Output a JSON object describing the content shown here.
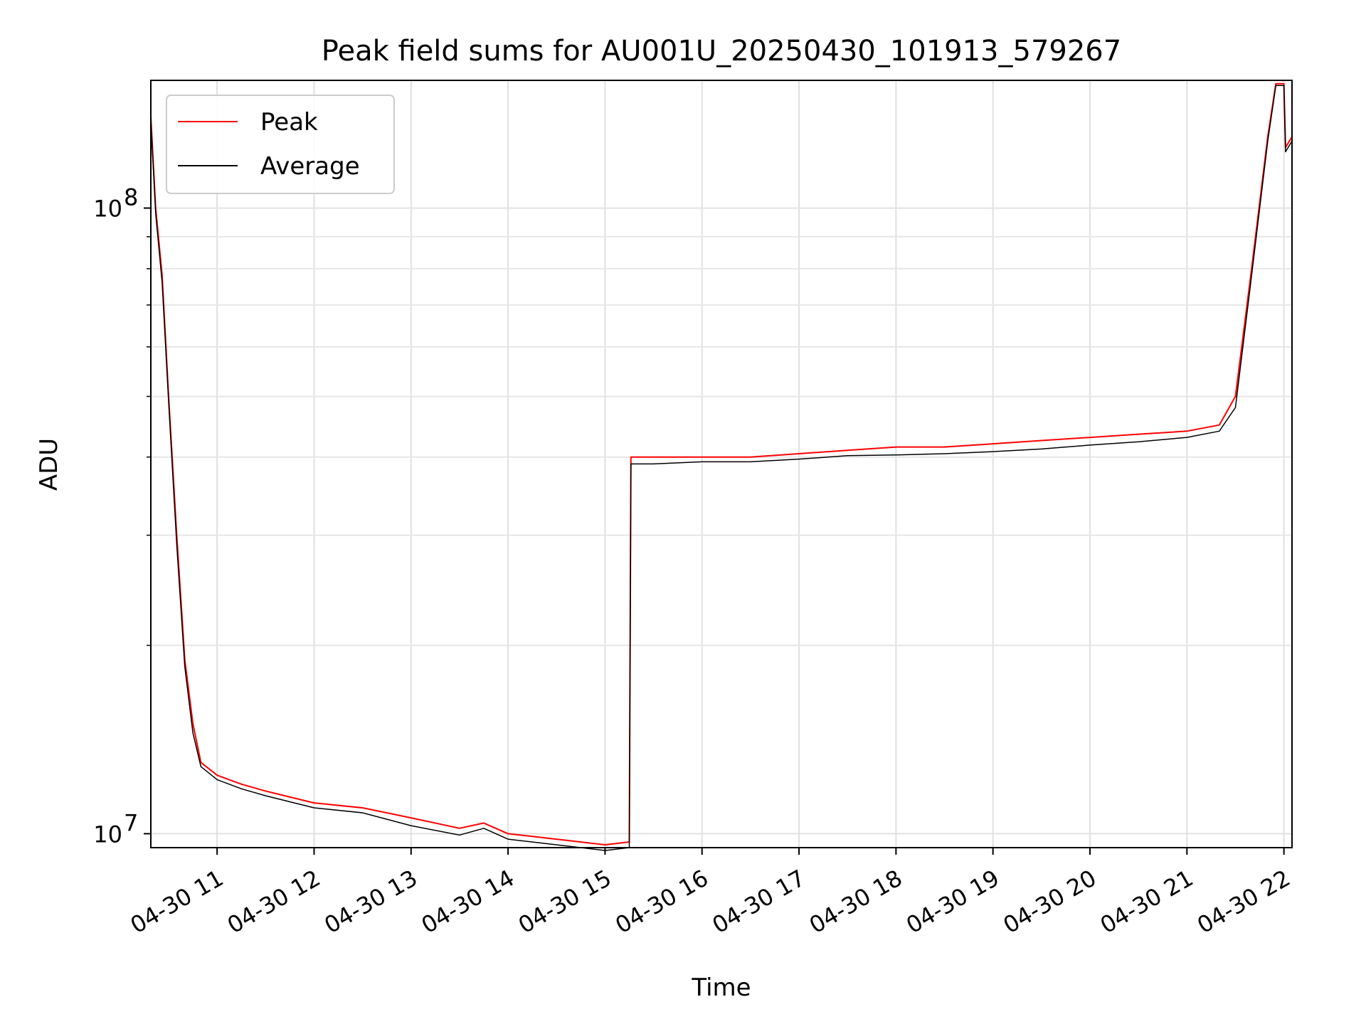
{
  "chart_data": {
    "type": "line",
    "title": "Peak field sums for AU001U_20250430_101913_579267",
    "xlabel": "Time",
    "ylabel": "ADU",
    "y_scale": "log",
    "ylim": [
      9500000,
      160000000
    ],
    "xlim": [
      "04-30 10:19",
      "04-30 22:05"
    ],
    "grid": true,
    "legend_position": "top-left",
    "x_ticks": [
      "04-30 11",
      "04-30 12",
      "04-30 13",
      "04-30 14",
      "04-30 15",
      "04-30 16",
      "04-30 17",
      "04-30 18",
      "04-30 19",
      "04-30 20",
      "04-30 21",
      "04-30 22"
    ],
    "y_tick_labels": [
      {
        "value": 10000000,
        "base": "10",
        "exp": "7"
      },
      {
        "value": 100000000,
        "base": "10",
        "exp": "8"
      }
    ],
    "series": [
      {
        "name": "Peak",
        "color": "#ff0000",
        "x": [
          "04-30 10:19",
          "04-30 10:22",
          "04-30 10:26",
          "04-30 10:30",
          "04-30 10:35",
          "04-30 10:40",
          "04-30 10:45",
          "04-30 10:50",
          "04-30 11:00",
          "04-30 11:15",
          "04-30 11:30",
          "04-30 12:00",
          "04-30 12:30",
          "04-30 13:00",
          "04-30 13:30",
          "04-30 13:45",
          "04-30 14:00",
          "04-30 14:30",
          "04-30 15:00",
          "04-30 15:15",
          "04-30 15:16",
          "04-30 15:30",
          "04-30 16:00",
          "04-30 16:30",
          "04-30 17:00",
          "04-30 17:30",
          "04-30 18:00",
          "04-30 18:30",
          "04-30 19:00",
          "04-30 19:30",
          "04-30 20:00",
          "04-30 20:30",
          "04-30 21:00",
          "04-30 21:20",
          "04-30 21:30",
          "04-30 21:40",
          "04-30 21:50",
          "04-30 21:55",
          "04-30 22:00",
          "04-30 22:01",
          "04-30 22:05"
        ],
        "y": [
          140000000,
          100000000,
          78000000,
          50000000,
          30000000,
          19000000,
          15000000,
          13000000,
          12400000,
          12000000,
          11700000,
          11200000,
          11000000,
          10600000,
          10200000,
          10400000,
          10000000,
          9800000,
          9600000,
          9700000,
          40000000,
          40000000,
          40000000,
          40000000,
          40500000,
          41000000,
          41500000,
          41500000,
          42000000,
          42500000,
          43000000,
          43500000,
          44000000,
          45000000,
          50000000,
          80000000,
          130000000,
          158000000,
          158000000,
          125000000,
          130000000
        ]
      },
      {
        "name": "Average",
        "color": "#000000",
        "x": [
          "04-30 10:19",
          "04-30 10:22",
          "04-30 10:26",
          "04-30 10:30",
          "04-30 10:35",
          "04-30 10:40",
          "04-30 10:45",
          "04-30 10:50",
          "04-30 11:00",
          "04-30 11:15",
          "04-30 11:30",
          "04-30 12:00",
          "04-30 12:30",
          "04-30 13:00",
          "04-30 13:30",
          "04-30 13:45",
          "04-30 14:00",
          "04-30 14:30",
          "04-30 15:00",
          "04-30 15:15",
          "04-30 15:16",
          "04-30 15:30",
          "04-30 16:00",
          "04-30 16:30",
          "04-30 17:00",
          "04-30 17:30",
          "04-30 18:00",
          "04-30 18:30",
          "04-30 19:00",
          "04-30 19:30",
          "04-30 20:00",
          "04-30 20:30",
          "04-30 21:00",
          "04-30 21:20",
          "04-30 21:30",
          "04-30 21:40",
          "04-30 21:50",
          "04-30 21:55",
          "04-30 22:00",
          "04-30 22:01",
          "04-30 22:05"
        ],
        "y": [
          138000000,
          98000000,
          76000000,
          49000000,
          29000000,
          18500000,
          14500000,
          12800000,
          12200000,
          11800000,
          11500000,
          11000000,
          10800000,
          10300000,
          9950000,
          10200000,
          9800000,
          9600000,
          9400000,
          9500000,
          39000000,
          39000000,
          39300000,
          39300000,
          39700000,
          40200000,
          40300000,
          40500000,
          40800000,
          41200000,
          41800000,
          42300000,
          43000000,
          44000000,
          48000000,
          78000000,
          128000000,
          157000000,
          157000000,
          123000000,
          128000000
        ]
      }
    ]
  }
}
